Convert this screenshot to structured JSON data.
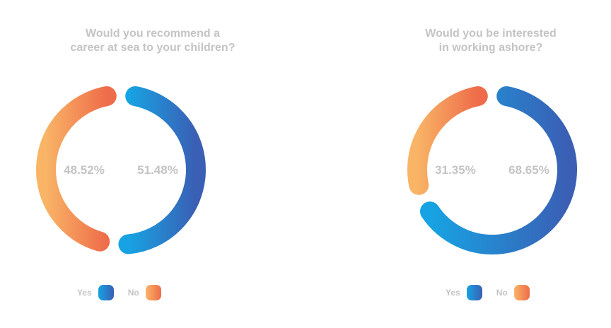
{
  "colors": {
    "yes_start": "#17a3e3",
    "yes_end": "#3a5fb4",
    "no_start": "#f9b466",
    "no_end": "#ee6c4a"
  },
  "legend": {
    "yes": "Yes",
    "no": "No"
  },
  "chart_data": [
    {
      "type": "pie",
      "style": "donut",
      "title_lines": [
        "Would you recommend a",
        "career at sea to your children?"
      ],
      "categories": [
        "Yes",
        "No"
      ],
      "values": [
        51.48,
        48.52
      ],
      "labels": [
        "51.48%",
        "48.52%"
      ]
    },
    {
      "type": "pie",
      "style": "donut",
      "title_lines": [
        "Would you be interested",
        "in working ashore?"
      ],
      "categories": [
        "Yes",
        "No"
      ],
      "values": [
        68.65,
        31.35
      ],
      "labels": [
        "68.65%",
        "31.35%"
      ]
    }
  ]
}
